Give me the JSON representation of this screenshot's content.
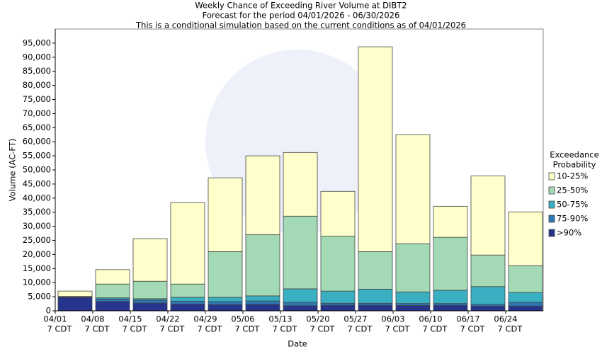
{
  "chart_data": {
    "type": "stacked_bar",
    "title": [
      "Weekly Chance of Exceeding River Volume at DIBT2",
      "Forecast for the period 04/01/2026 - 06/30/2026",
      "This is a conditional simulation based on the current conditions as of 04/01/2026"
    ],
    "xlabel": "Date",
    "ylabel": "Volume (AC-FT)",
    "categories": [
      "04/01",
      "04/08",
      "04/15",
      "04/22",
      "04/29",
      "05/06",
      "05/13",
      "05/20",
      "05/27",
      "06/03",
      "06/10",
      "06/17",
      "06/24"
    ],
    "category_sublabel": "7 CDT",
    "legend_title": [
      "Exceedance",
      "Probability"
    ],
    "legend": "right",
    "series": [
      {
        "name": ">90%",
        "color": "#27348b",
        "values": [
          4800,
          3300,
          2800,
          2400,
          2200,
          2300,
          1800,
          2000,
          2000,
          1900,
          2000,
          1700,
          1700
        ]
      },
      {
        "name": "75-90%",
        "color": "#2b78b4",
        "values": [
          100,
          900,
          1000,
          1000,
          1100,
          1200,
          1200,
          700,
          700,
          700,
          600,
          600,
          1300
        ]
      },
      {
        "name": "50-75%",
        "color": "#3aafc2",
        "values": [
          100,
          400,
          500,
          1400,
          1500,
          1800,
          4800,
          4300,
          5000,
          4100,
          4700,
          6300,
          3500
        ]
      },
      {
        "name": "25-50%",
        "color": "#a3dab5",
        "values": [
          100,
          4900,
          6200,
          4700,
          16200,
          21700,
          25800,
          19500,
          13300,
          17100,
          18800,
          11200,
          9500
        ]
      },
      {
        "name": "10-25%",
        "color": "#ffffcc",
        "values": [
          1900,
          5100,
          15100,
          28900,
          26200,
          28000,
          22600,
          15900,
          72700,
          38700,
          11000,
          28100,
          19100
        ]
      }
    ],
    "ylim": [
      0,
      100000
    ],
    "yticks": [
      0,
      {
        "value": 5000,
        "label": "5,000"
      },
      {
        "value": 10000,
        "label": "10,000"
      },
      {
        "value": 15000,
        "label": "15,000"
      },
      {
        "value": 20000,
        "label": "20,000"
      },
      {
        "value": 25000,
        "label": "25,000"
      },
      {
        "value": 30000,
        "label": "30,000"
      },
      {
        "value": 35000,
        "label": "35,000"
      },
      {
        "value": 40000,
        "label": "40,000"
      },
      {
        "value": 45000,
        "label": "45,000"
      },
      {
        "value": 50000,
        "label": "50,000"
      },
      {
        "value": 55000,
        "label": "55,000"
      },
      {
        "value": 60000,
        "label": "60,000"
      },
      {
        "value": 65000,
        "label": "65,000"
      },
      {
        "value": 70000,
        "label": "70,000"
      },
      {
        "value": 75000,
        "label": "75,000"
      },
      {
        "value": 80000,
        "label": "80,000"
      },
      {
        "value": 85000,
        "label": "85,000"
      },
      {
        "value": 90000,
        "label": "90,000"
      },
      {
        "value": 95000,
        "label": "95,000"
      }
    ],
    "grid": false
  }
}
